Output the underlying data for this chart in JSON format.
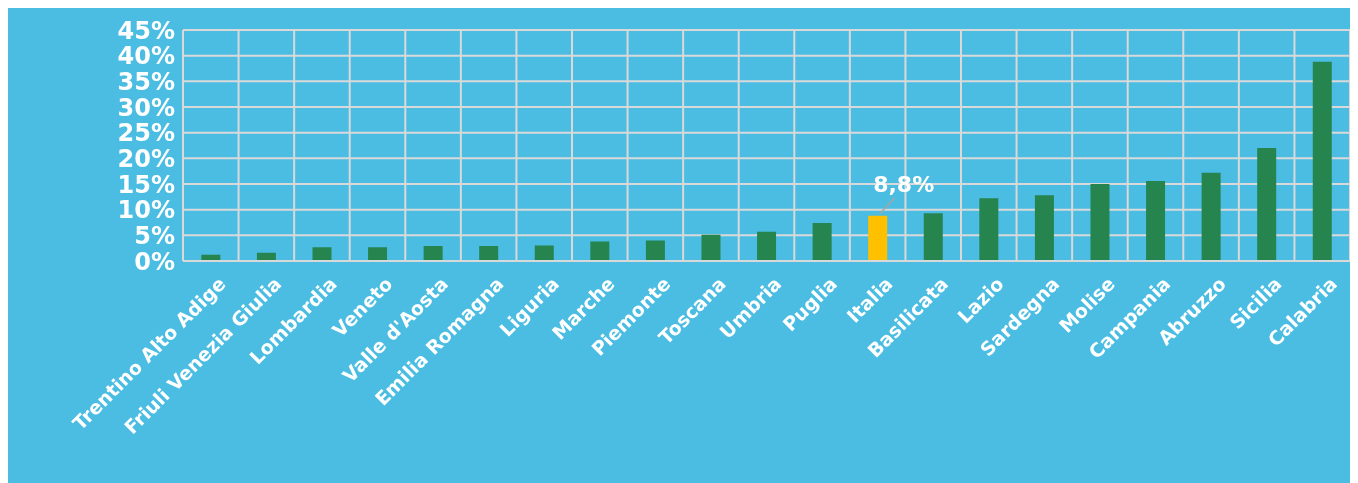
{
  "chart_data": {
    "type": "bar",
    "categories": [
      "Trentino Alto Adige",
      "Friuli Venezia Giulia",
      "Lombardia",
      "Veneto",
      "Valle d'Aosta",
      "Emilia Romagna",
      "Liguria",
      "Marche",
      "Piemonte",
      "Toscana",
      "Umbria",
      "Puglia",
      "Italia",
      "Basilicata",
      "Lazio",
      "Sardegna",
      "Molise",
      "Campania",
      "Abruzzo",
      "Sicilia",
      "Calabria"
    ],
    "values": [
      1.2,
      1.6,
      2.7,
      2.7,
      2.9,
      2.9,
      3.0,
      3.8,
      4.0,
      5.1,
      5.7,
      7.4,
      8.8,
      9.3,
      12.2,
      12.8,
      15.0,
      15.6,
      17.2,
      22.0,
      38.8
    ],
    "colors": [
      "#26844f",
      "#26844f",
      "#26844f",
      "#26844f",
      "#26844f",
      "#26844f",
      "#26844f",
      "#26844f",
      "#26844f",
      "#26844f",
      "#26844f",
      "#26844f",
      "#ffc000",
      "#26844f",
      "#26844f",
      "#26844f",
      "#26844f",
      "#26844f",
      "#26844f",
      "#26844f",
      "#26844f"
    ],
    "value_labels": [
      null,
      null,
      null,
      null,
      null,
      null,
      null,
      null,
      null,
      null,
      null,
      null,
      "8,8%",
      null,
      null,
      null,
      null,
      null,
      null,
      null,
      null
    ],
    "ylim": [
      0,
      45
    ],
    "yticks": [
      {
        "value": 0,
        "label": "0%"
      },
      {
        "value": 5,
        "label": "5%"
      },
      {
        "value": 10,
        "label": "10%"
      },
      {
        "value": 15,
        "label": "15%"
      },
      {
        "value": 20,
        "label": "20%"
      },
      {
        "value": 25,
        "label": "25%"
      },
      {
        "value": 30,
        "label": "30%"
      },
      {
        "value": 35,
        "label": "35%"
      },
      {
        "value": 40,
        "label": "40%"
      },
      {
        "value": 45,
        "label": "45%"
      }
    ],
    "grid": true,
    "legend": false
  }
}
